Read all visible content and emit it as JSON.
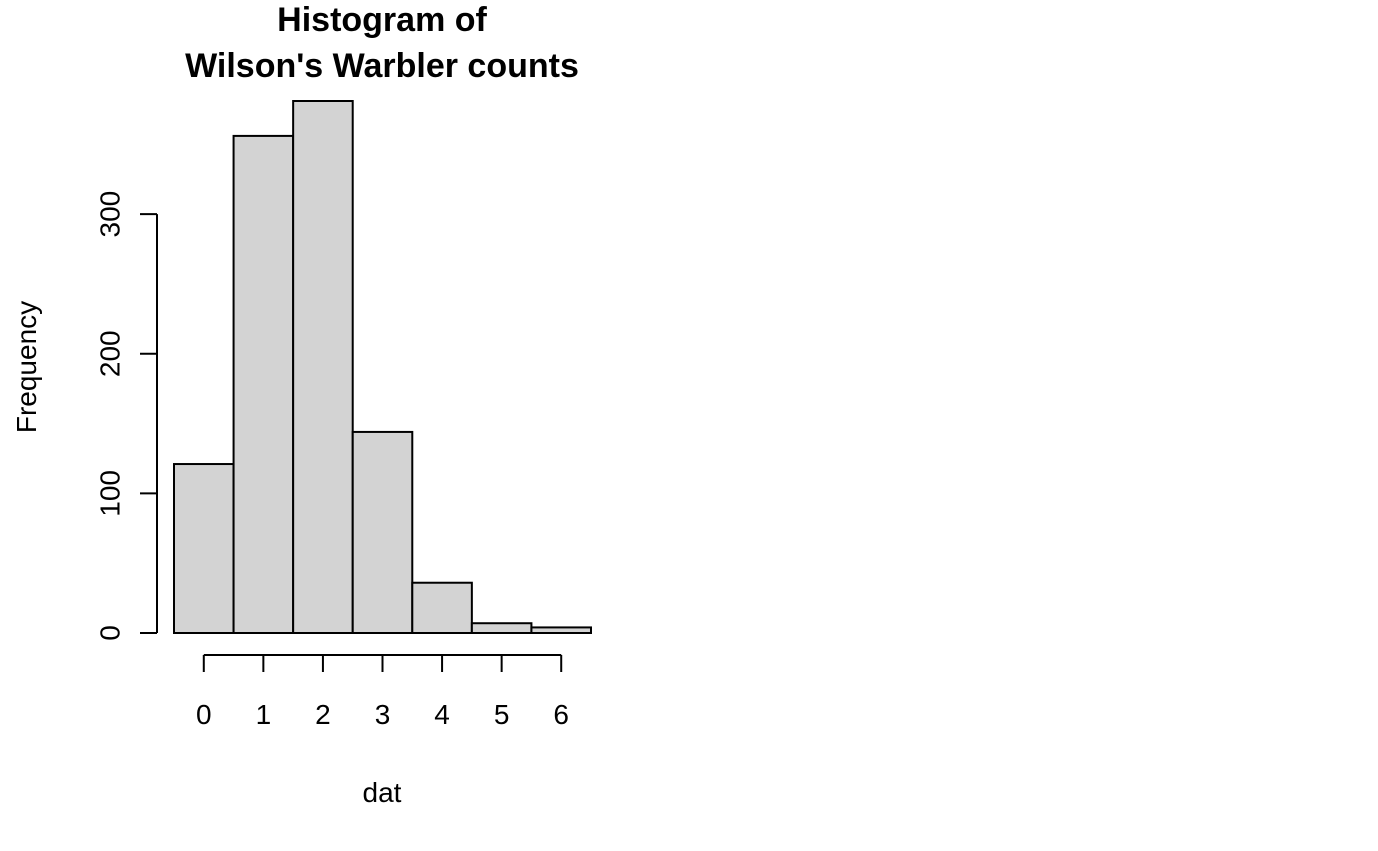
{
  "chart_data": {
    "type": "bar",
    "title_lines": [
      "Histogram of",
      "Wilson's Warbler counts"
    ],
    "xlabel": "dat",
    "ylabel": "Frequency",
    "bins": [
      {
        "from": -0.5,
        "to": 0.5,
        "count": 121
      },
      {
        "from": 0.5,
        "to": 1.5,
        "count": 356
      },
      {
        "from": 1.5,
        "to": 2.5,
        "count": 381
      },
      {
        "from": 2.5,
        "to": 3.5,
        "count": 144
      },
      {
        "from": 3.5,
        "to": 4.5,
        "count": 36
      },
      {
        "from": 4.5,
        "to": 5.5,
        "count": 7
      },
      {
        "from": 5.5,
        "to": 6.5,
        "count": 4
      }
    ],
    "x_ticks": [
      0,
      1,
      2,
      3,
      4,
      5,
      6
    ],
    "x_tick_labels": [
      "0",
      "1",
      "2",
      "3",
      "4",
      "5",
      "6"
    ],
    "y_ticks": [
      0,
      100,
      200,
      300
    ],
    "y_tick_labels": [
      "0",
      "100",
      "200",
      "300"
    ],
    "xlim": [
      -0.5,
      6.5
    ],
    "ylim": [
      0,
      381
    ],
    "grid": false,
    "bar_color": "#d3d3d3",
    "border_color": "#000000"
  }
}
